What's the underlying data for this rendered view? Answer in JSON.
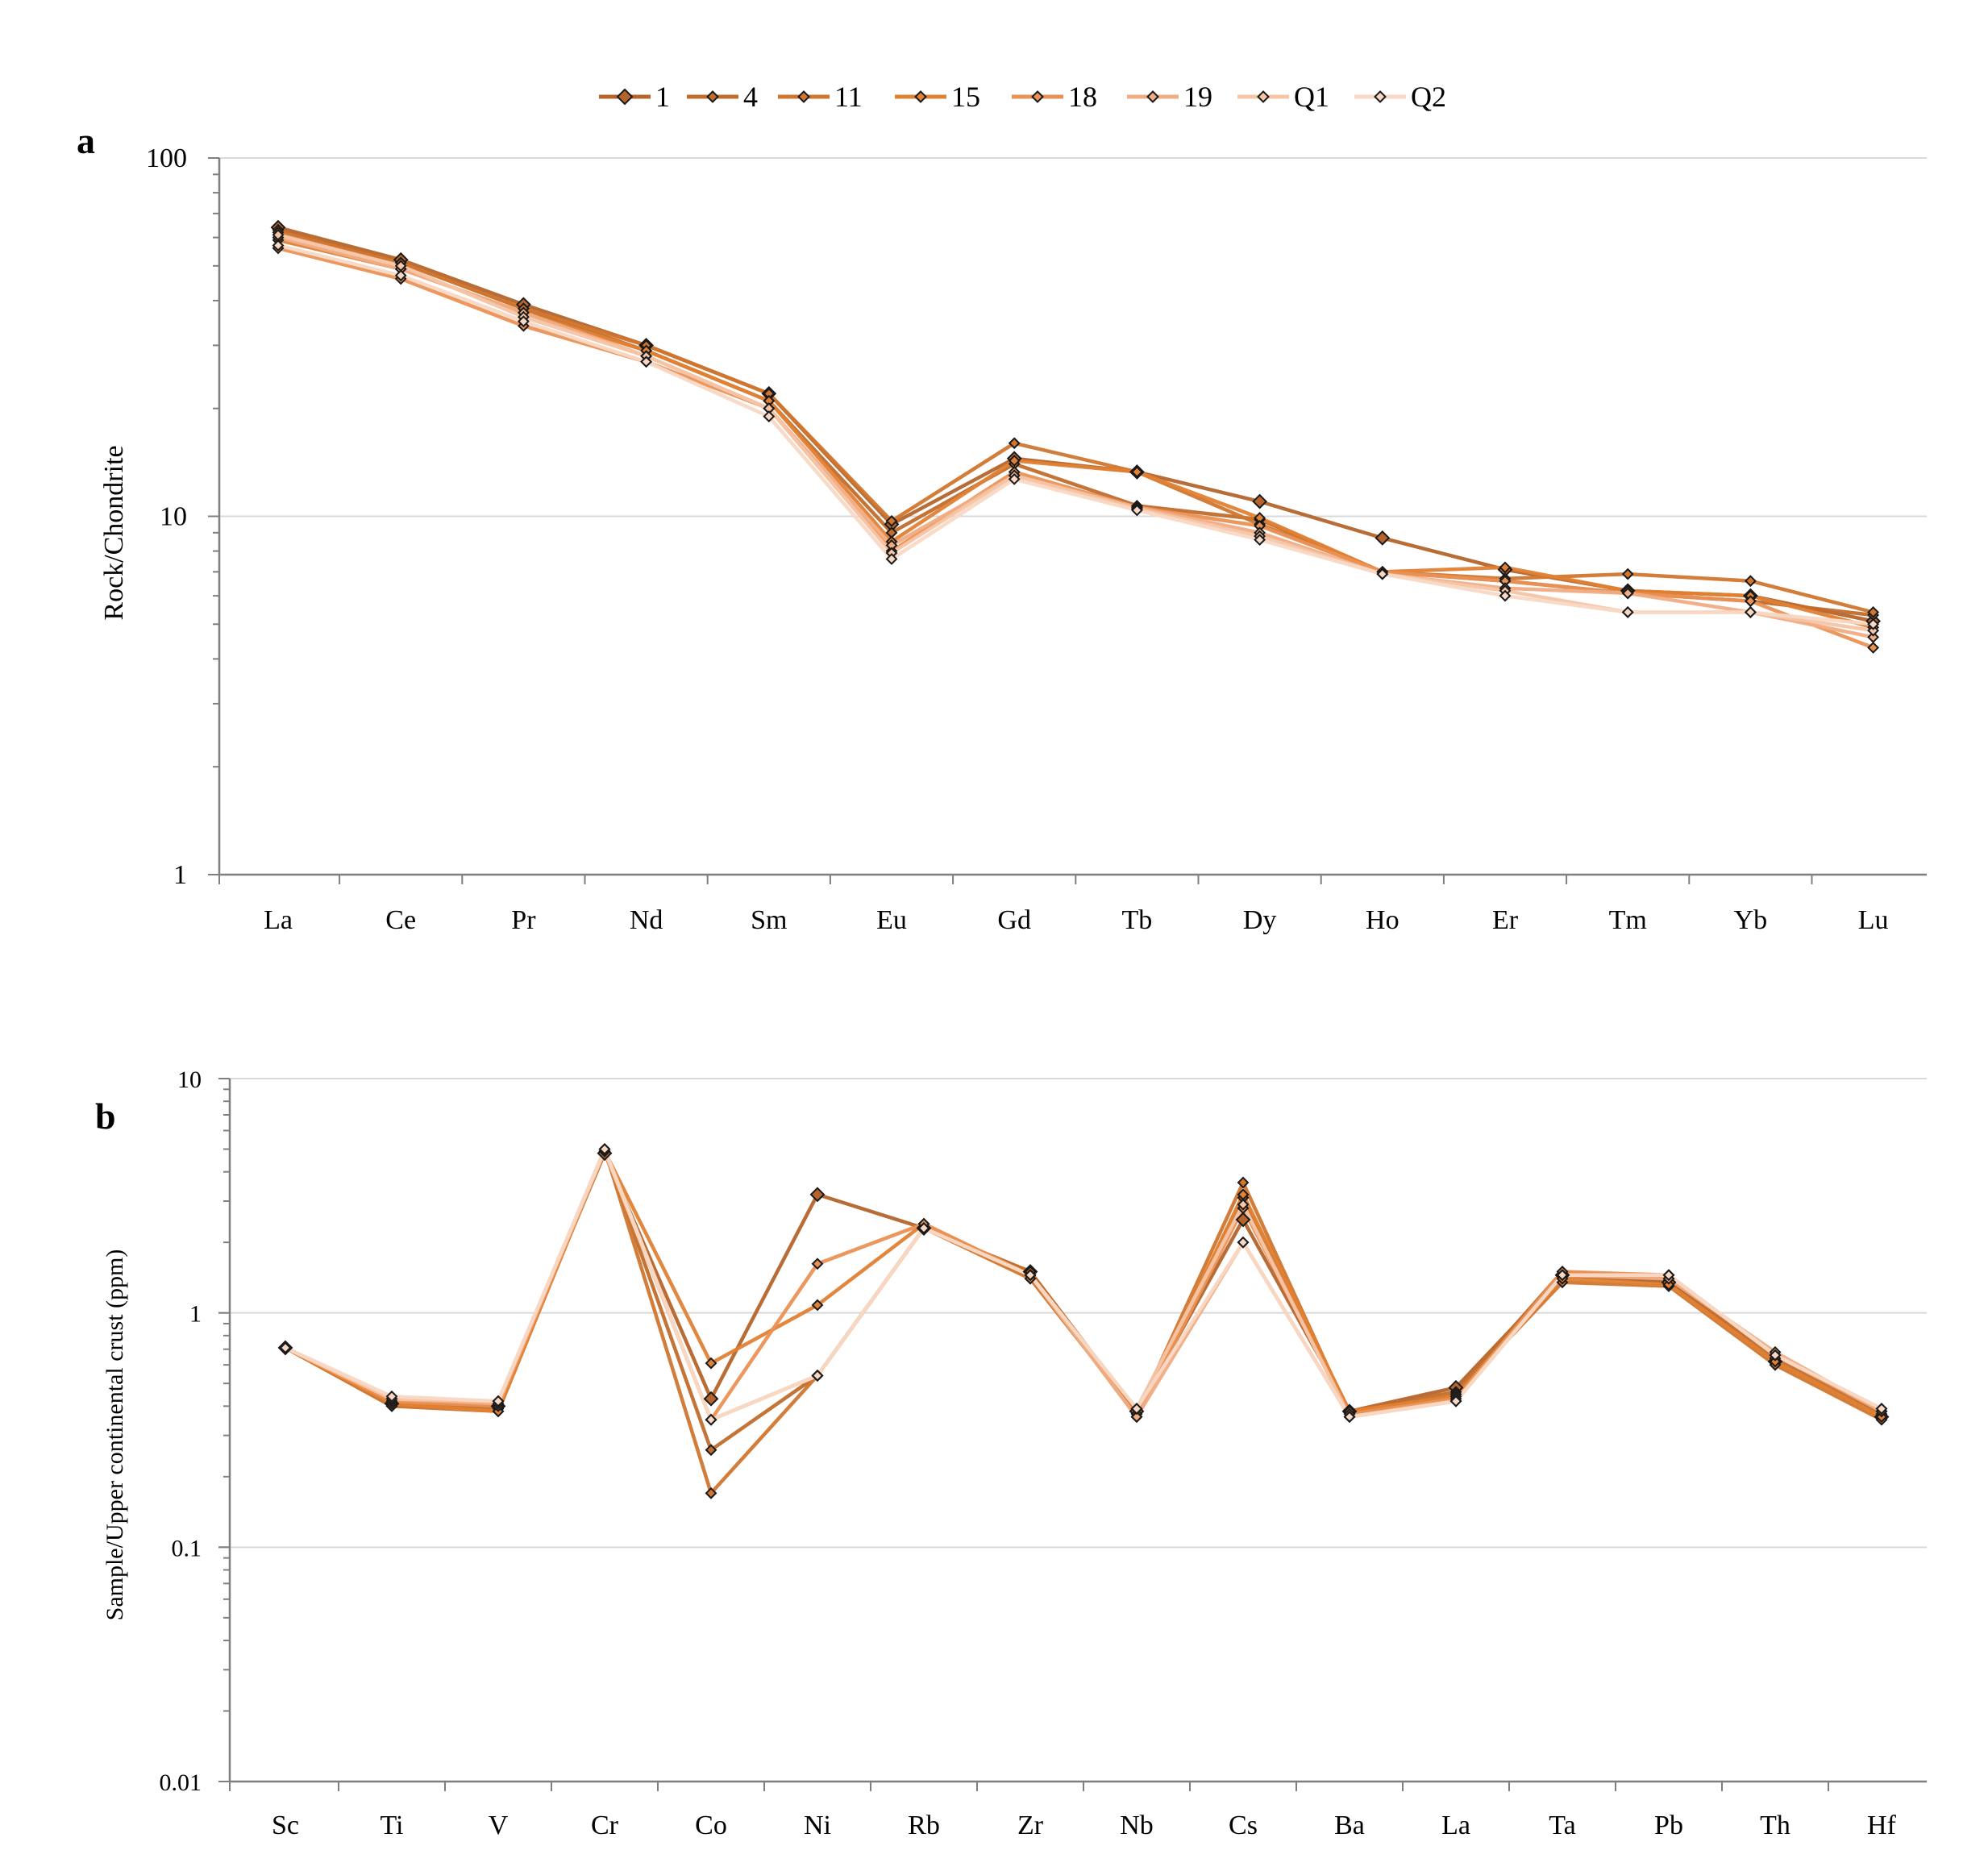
{
  "legend": {
    "series_names": [
      "1",
      "4",
      "11",
      "15",
      "18",
      "19",
      "Q1",
      "Q2"
    ]
  },
  "colors": {
    "series": [
      "#b5652b",
      "#c26d2c",
      "#d1762f",
      "#e08133",
      "#ea9155",
      "#f0ac83",
      "#f5c5a6",
      "#f8d8c4"
    ],
    "marker_stroke": "#1a1a1a",
    "grid": "#d9d9d9",
    "axis": "#7f7f7f"
  },
  "chart_data": [
    {
      "type": "line",
      "panel_label": "a",
      "ylabel": "Rock/Chondrite",
      "xlabel": "",
      "yscale": "log",
      "ylim": [
        1,
        100
      ],
      "yticks": [
        "1",
        "10",
        "100"
      ],
      "grid": true,
      "legend_position": "top-center",
      "categories": [
        "La",
        "Ce",
        "Pr",
        "Nd",
        "Sm",
        "Eu",
        "Gd",
        "Tb",
        "Dy",
        "Ho",
        "Er",
        "Tm",
        "Yb",
        "Lu"
      ],
      "series": [
        {
          "name": "1",
          "values": [
            64,
            52,
            39,
            30,
            22,
            9.5,
            14.5,
            13.3,
            11.0,
            8.7,
            7.1,
            6.2,
            6.0,
            5.1
          ]
        },
        {
          "name": "4",
          "values": [
            63,
            51,
            38,
            29,
            21,
            9.0,
            14.0,
            10.7,
            9.8,
            7.0,
            6.6,
            6.1,
            5.8,
            5.3
          ]
        },
        {
          "name": "11",
          "values": [
            62,
            51,
            38,
            30,
            22,
            9.7,
            16.0,
            13.3,
            9.5,
            7.0,
            6.7,
            6.9,
            6.6,
            5.4
          ]
        },
        {
          "name": "15",
          "values": [
            59,
            49,
            37,
            29,
            21,
            8.5,
            14.3,
            13.3,
            9.9,
            7.0,
            7.2,
            6.2,
            6.0,
            4.9
          ]
        },
        {
          "name": "18",
          "values": [
            56,
            46,
            34,
            27,
            20,
            8.0,
            13.3,
            10.6,
            9.4,
            7.0,
            6.6,
            6.1,
            5.8,
            4.3
          ]
        },
        {
          "name": "19",
          "values": [
            60,
            49,
            37,
            28,
            20,
            8.3,
            13.0,
            10.6,
            9.0,
            6.9,
            6.3,
            6.1,
            5.4,
            4.6
          ]
        },
        {
          "name": "Q1",
          "values": [
            61,
            50,
            36,
            28,
            20,
            7.9,
            13.0,
            10.5,
            8.8,
            6.9,
            6.2,
            5.4,
            5.4,
            4.8
          ]
        },
        {
          "name": "Q2",
          "values": [
            57,
            47,
            35,
            27,
            19,
            7.6,
            12.7,
            10.4,
            8.6,
            6.9,
            6.0,
            5.4,
            5.4,
            5.0
          ]
        }
      ]
    },
    {
      "type": "line",
      "panel_label": "b",
      "ylabel": "Sample/Upper continental crust (ppm)",
      "xlabel": "",
      "yscale": "log",
      "ylim": [
        0.01,
        10
      ],
      "yticks": [
        "0.01",
        "0.1",
        "1",
        "10"
      ],
      "grid": true,
      "categories": [
        "Sc",
        "Ti",
        "V",
        "Cr",
        "Co",
        "Ni",
        "Rb",
        "Zr",
        "Nb",
        "Cs",
        "Ba",
        "La",
        "Ta",
        "Pb",
        "Th",
        "Hf"
      ],
      "series": [
        {
          "name": "1",
          "values": [
            0.71,
            0.41,
            0.4,
            4.8,
            0.43,
            3.2,
            2.3,
            1.5,
            0.38,
            2.5,
            0.38,
            0.48,
            1.45,
            1.35,
            0.62,
            0.36
          ]
        },
        {
          "name": "4",
          "values": [
            0.71,
            0.4,
            0.39,
            4.9,
            0.26,
            0.54,
            2.3,
            1.5,
            0.37,
            3.1,
            0.38,
            0.46,
            1.5,
            1.4,
            0.64,
            0.37
          ]
        },
        {
          "name": "11",
          "values": [
            0.71,
            0.4,
            0.38,
            5.0,
            0.17,
            0.54,
            2.3,
            1.4,
            0.37,
            3.6,
            0.37,
            0.45,
            1.35,
            1.3,
            0.6,
            0.35
          ]
        },
        {
          "name": "15",
          "values": [
            0.71,
            0.41,
            0.38,
            4.9,
            0.61,
            1.08,
            2.4,
            1.45,
            0.36,
            3.2,
            0.38,
            0.44,
            1.4,
            1.32,
            0.62,
            0.36
          ]
        },
        {
          "name": "18",
          "values": [
            0.71,
            0.42,
            0.4,
            4.9,
            0.35,
            1.62,
            2.4,
            1.45,
            0.36,
            2.8,
            0.37,
            0.43,
            1.5,
            1.45,
            0.66,
            0.38
          ]
        },
        {
          "name": "19",
          "values": [
            0.71,
            0.43,
            0.41,
            5.0,
            0.35,
            0.54,
            2.3,
            1.45,
            0.36,
            2.0,
            0.36,
            0.42,
            1.45,
            1.4,
            0.68,
            0.38
          ]
        },
        {
          "name": "Q1",
          "values": [
            0.71,
            0.43,
            0.42,
            4.9,
            0.35,
            0.54,
            2.3,
            1.45,
            0.39,
            2.9,
            0.36,
            0.42,
            1.45,
            1.45,
            0.66,
            0.39
          ]
        },
        {
          "name": "Q2",
          "values": [
            0.71,
            0.44,
            0.42,
            5.0,
            0.35,
            0.54,
            2.3,
            1.45,
            0.39,
            2.0,
            0.36,
            0.42,
            1.45,
            1.45,
            0.66,
            0.39
          ]
        }
      ]
    }
  ]
}
